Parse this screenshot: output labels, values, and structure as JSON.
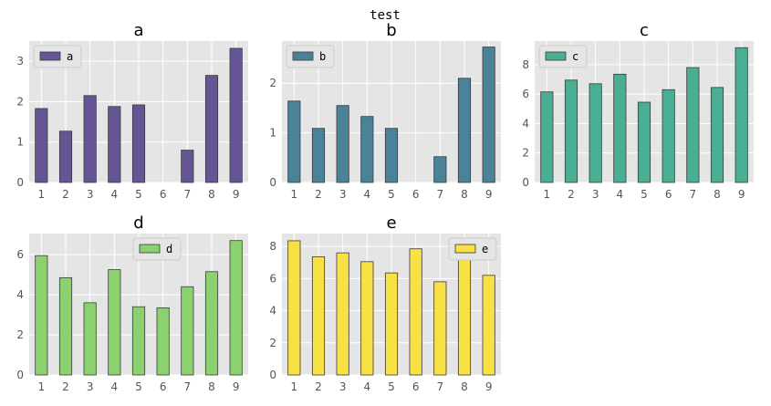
{
  "suptitle": "test",
  "chart_data": [
    {
      "type": "bar",
      "title": "a",
      "categories": [
        "1",
        "2",
        "3",
        "4",
        "5",
        "6",
        "7",
        "8",
        "9"
      ],
      "series": [
        {
          "name": "a",
          "values": [
            1.83,
            1.27,
            2.15,
            1.88,
            1.92,
            0,
            0.8,
            2.65,
            3.32
          ]
        }
      ],
      "ylim": [
        0,
        3.5
      ],
      "yticks": [
        0,
        1,
        2,
        3
      ],
      "legend": "top-left",
      "color": "#655595",
      "grid": true
    },
    {
      "type": "bar",
      "title": "b",
      "categories": [
        "1",
        "2",
        "3",
        "4",
        "5",
        "6",
        "7",
        "8",
        "9"
      ],
      "series": [
        {
          "name": "b",
          "values": [
            1.64,
            1.09,
            1.55,
            1.33,
            1.09,
            0,
            0.52,
            2.1,
            2.73
          ]
        }
      ],
      "ylim": [
        0,
        2.85
      ],
      "yticks": [
        0,
        1,
        2
      ],
      "legend": "top-left",
      "color": "#4a8298",
      "grid": true
    },
    {
      "type": "bar",
      "title": "c",
      "categories": [
        "1",
        "2",
        "3",
        "4",
        "5",
        "6",
        "7",
        "8",
        "9"
      ],
      "series": [
        {
          "name": "c",
          "values": [
            6.15,
            6.95,
            6.7,
            7.35,
            5.45,
            6.3,
            7.8,
            6.45,
            9.15
          ]
        }
      ],
      "ylim": [
        0,
        9.6
      ],
      "yticks": [
        0,
        2,
        4,
        6,
        8
      ],
      "legend": "top-left",
      "color": "#4aae94",
      "grid": true
    },
    {
      "type": "bar",
      "title": "d",
      "categories": [
        "1",
        "2",
        "3",
        "4",
        "5",
        "6",
        "7",
        "8",
        "9"
      ],
      "series": [
        {
          "name": "d",
          "values": [
            5.95,
            4.85,
            3.6,
            5.25,
            3.4,
            3.35,
            4.4,
            5.15,
            6.7
          ]
        }
      ],
      "ylim": [
        0,
        7.05
      ],
      "yticks": [
        0,
        2,
        4,
        6
      ],
      "legend": "top-center",
      "color": "#8bd16f",
      "grid": true
    },
    {
      "type": "bar",
      "title": "e",
      "categories": [
        "1",
        "2",
        "3",
        "4",
        "5",
        "6",
        "7",
        "8",
        "9"
      ],
      "series": [
        {
          "name": "e",
          "values": [
            8.35,
            7.35,
            7.6,
            7.05,
            6.35,
            7.85,
            5.8,
            7.25,
            6.2
          ]
        }
      ],
      "ylim": [
        0,
        8.8
      ],
      "yticks": [
        0,
        2,
        4,
        6,
        8
      ],
      "legend": "top-right",
      "color": "#f7e145",
      "grid": true
    }
  ]
}
